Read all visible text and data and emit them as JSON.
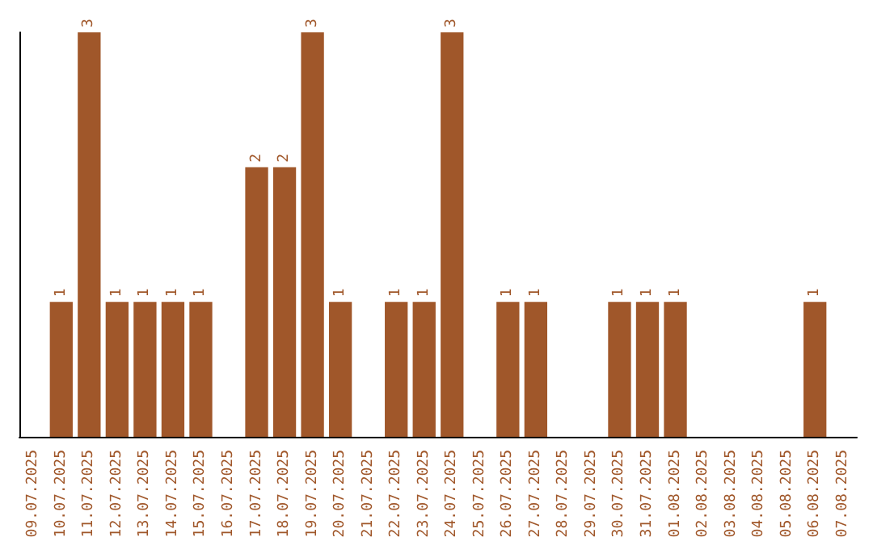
{
  "chart_data": {
    "type": "bar",
    "categories": [
      "09.07.2025",
      "10.07.2025",
      "11.07.2025",
      "12.07.2025",
      "13.07.2025",
      "14.07.2025",
      "15.07.2025",
      "16.07.2025",
      "17.07.2025",
      "18.07.2025",
      "19.07.2025",
      "20.07.2025",
      "21.07.2025",
      "22.07.2025",
      "23.07.2025",
      "24.07.2025",
      "25.07.2025",
      "26.07.2025",
      "27.07.2025",
      "28.07.2025",
      "29.07.2025",
      "30.07.2025",
      "31.07.2025",
      "01.08.2025",
      "02.08.2025",
      "03.08.2025",
      "04.08.2025",
      "05.08.2025",
      "06.08.2025",
      "07.08.2025"
    ],
    "values": [
      0,
      1,
      3,
      1,
      1,
      1,
      1,
      0,
      2,
      2,
      3,
      1,
      0,
      1,
      1,
      3,
      0,
      1,
      1,
      0,
      0,
      1,
      1,
      1,
      0,
      0,
      0,
      0,
      1,
      0
    ],
    "value_labels": [
      null,
      "1",
      "3",
      "1",
      "1",
      "1",
      "1",
      null,
      "2",
      "2",
      "3",
      "1",
      null,
      "1",
      "1",
      "3",
      null,
      "1",
      "1",
      null,
      null,
      "1",
      "1",
      "1",
      null,
      null,
      null,
      null,
      "1",
      null
    ],
    "color": "#a0572a",
    "grid": false,
    "tick_labels": "x"
  }
}
